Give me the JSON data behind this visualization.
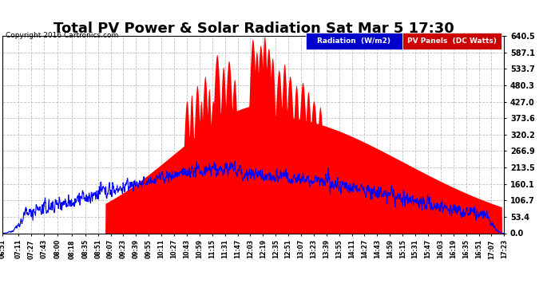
{
  "title": "Total PV Power & Solar Radiation Sat Mar 5 17:30",
  "copyright": "Copyright 2016 Cartronics.com",
  "legend_labels": [
    "Radiation  (W/m2)",
    "PV Panels  (DC Watts)"
  ],
  "y_ticks": [
    0.0,
    53.4,
    106.7,
    160.1,
    213.5,
    266.9,
    320.2,
    373.6,
    427.0,
    480.3,
    533.7,
    587.1,
    640.5
  ],
  "y_max": 640.5,
  "y_min": 0.0,
  "background_color": "#ffffff",
  "plot_bg": "#ffffff",
  "grid_color": "#bbbbbb",
  "pv_color": "#ff0000",
  "radiation_color": "#0000ff",
  "rad_legend_bg": "#0000cc",
  "pv_legend_bg": "#cc0000",
  "title_fontsize": 13,
  "x_tick_labels": [
    "06:51",
    "07:11",
    "07:27",
    "07:43",
    "08:00",
    "08:18",
    "08:35",
    "08:51",
    "09:07",
    "09:23",
    "09:39",
    "09:55",
    "10:11",
    "10:27",
    "10:43",
    "10:59",
    "11:15",
    "11:31",
    "11:47",
    "12:03",
    "12:19",
    "12:35",
    "12:51",
    "13:07",
    "13:23",
    "13:39",
    "13:55",
    "14:11",
    "14:27",
    "14:43",
    "14:59",
    "15:15",
    "15:31",
    "15:47",
    "16:03",
    "16:19",
    "16:35",
    "16:51",
    "17:07",
    "17:23"
  ]
}
